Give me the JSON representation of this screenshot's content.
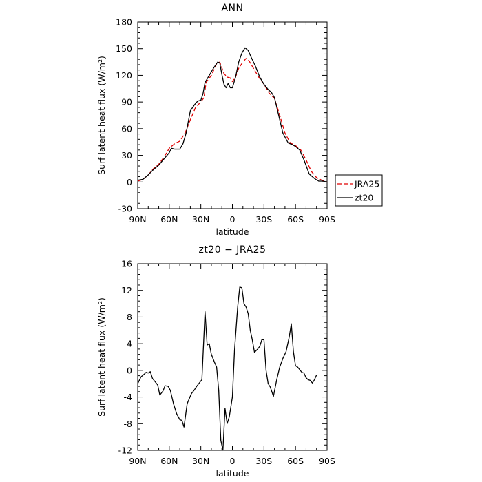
{
  "chart_data": [
    {
      "type": "line",
      "title": "ANN",
      "xlabel": "latitude",
      "ylabel": "Surf latent heat flux (W/m²)",
      "xlim": [
        90,
        -90
      ],
      "ylim": [
        -30,
        180
      ],
      "x_ticks": [
        90,
        60,
        30,
        0,
        -30,
        -60,
        -90
      ],
      "x_tick_labels": [
        "90N",
        "60N",
        "30N",
        "0",
        "30S",
        "60S",
        "90S"
      ],
      "y_ticks": [
        -30,
        0,
        30,
        60,
        90,
        120,
        150,
        180
      ],
      "y_tick_labels": [
        "-30",
        "0",
        "30",
        "60",
        "90",
        "120",
        "150",
        "180"
      ],
      "legend": {
        "placement": "right",
        "entries": [
          "JRA25",
          "zt20"
        ]
      },
      "series": [
        {
          "name": "JRA25",
          "color": "#e00000",
          "dash": "dashed",
          "points": [
            [
              90,
              1
            ],
            [
              85,
              3
            ],
            [
              80,
              8
            ],
            [
              75,
              15
            ],
            [
              70,
              20
            ],
            [
              65,
              28
            ],
            [
              60,
              38
            ],
            [
              55,
              43
            ],
            [
              50,
              46
            ],
            [
              45,
              55
            ],
            [
              40,
              70
            ],
            [
              35,
              84
            ],
            [
              30,
              90
            ],
            [
              27,
              95
            ],
            [
              25,
              112
            ],
            [
              20,
              120
            ],
            [
              15,
              133
            ],
            [
              12,
              135
            ],
            [
              8,
              122
            ],
            [
              5,
              118
            ],
            [
              2,
              117
            ],
            [
              0,
              113
            ],
            [
              -3,
              118
            ],
            [
              -6,
              128
            ],
            [
              -10,
              135
            ],
            [
              -13,
              139
            ],
            [
              -16,
              136
            ],
            [
              -20,
              128
            ],
            [
              -25,
              118
            ],
            [
              -30,
              110
            ],
            [
              -35,
              100
            ],
            [
              -40,
              94
            ],
            [
              -45,
              75
            ],
            [
              -50,
              55
            ],
            [
              -55,
              44
            ],
            [
              -60,
              41
            ],
            [
              -65,
              36
            ],
            [
              -70,
              25
            ],
            [
              -75,
              12
            ],
            [
              -80,
              5
            ],
            [
              -85,
              2
            ],
            [
              -90,
              0
            ]
          ]
        },
        {
          "name": "zt20",
          "color": "#000000",
          "dash": "solid",
          "points": [
            [
              90,
              2
            ],
            [
              85,
              3
            ],
            [
              80,
              8
            ],
            [
              75,
              14
            ],
            [
              70,
              19
            ],
            [
              65,
              26
            ],
            [
              60,
              33
            ],
            [
              58,
              38
            ],
            [
              55,
              37
            ],
            [
              50,
              37
            ],
            [
              47,
              43
            ],
            [
              44,
              55
            ],
            [
              40,
              80
            ],
            [
              36,
              87
            ],
            [
              33,
              91
            ],
            [
              30,
              92
            ],
            [
              28,
              99
            ],
            [
              26,
              112
            ],
            [
              22,
              120
            ],
            [
              18,
              128
            ],
            [
              14,
              135
            ],
            [
              12,
              134
            ],
            [
              10,
              121
            ],
            [
              8,
              110
            ],
            [
              6,
              106
            ],
            [
              4,
              111
            ],
            [
              2,
              106
            ],
            [
              0,
              106
            ],
            [
              -3,
              118
            ],
            [
              -6,
              135
            ],
            [
              -9,
              145
            ],
            [
              -12,
              151
            ],
            [
              -15,
              148
            ],
            [
              -18,
              140
            ],
            [
              -22,
              130
            ],
            [
              -26,
              118
            ],
            [
              -30,
              110
            ],
            [
              -34,
              104
            ],
            [
              -37,
              101
            ],
            [
              -40,
              95
            ],
            [
              -44,
              75
            ],
            [
              -48,
              55
            ],
            [
              -53,
              44
            ],
            [
              -57,
              42
            ],
            [
              -60,
              40
            ],
            [
              -64,
              36
            ],
            [
              -68,
              25
            ],
            [
              -73,
              9
            ],
            [
              -78,
              4
            ],
            [
              -82,
              1
            ],
            [
              -86,
              1
            ],
            [
              -90,
              0
            ]
          ]
        }
      ]
    },
    {
      "type": "line",
      "title": "zt20 − JRA25",
      "xlabel": "latitude",
      "ylabel": "Surf latent heat flux (W/m²)",
      "xlim": [
        90,
        -90
      ],
      "ylim": [
        -12,
        16
      ],
      "x_ticks": [
        90,
        60,
        30,
        0,
        -30,
        -60,
        -90
      ],
      "x_tick_labels": [
        "90N",
        "60N",
        "30N",
        "0",
        "30S",
        "60S",
        "90S"
      ],
      "y_ticks": [
        -12,
        -8,
        -4,
        0,
        4,
        8,
        12,
        16
      ],
      "y_tick_labels": [
        "-12",
        "-8",
        "-4",
        "0",
        "4",
        "8",
        "12",
        "16"
      ],
      "series": [
        {
          "color": "#000000",
          "dash": "solid",
          "points": [
            [
              90,
              -2
            ],
            [
              87,
              -1
            ],
            [
              84,
              -0.6
            ],
            [
              82,
              -0.3
            ],
            [
              80,
              -0.4
            ],
            [
              78,
              -0.2
            ],
            [
              76,
              -1.2
            ],
            [
              73,
              -1.8
            ],
            [
              71,
              -2.2
            ],
            [
              69,
              -3.7
            ],
            [
              66,
              -3.1
            ],
            [
              64,
              -2.3
            ],
            [
              61,
              -2.4
            ],
            [
              59,
              -3
            ],
            [
              56,
              -5
            ],
            [
              53,
              -6.5
            ],
            [
              50,
              -7.4
            ],
            [
              48,
              -7.5
            ],
            [
              46,
              -8.5
            ],
            [
              43,
              -5
            ],
            [
              39,
              -3.5
            ],
            [
              36,
              -2.9
            ],
            [
              34,
              -2.4
            ],
            [
              31,
              -1.8
            ],
            [
              29,
              -1.4
            ],
            [
              28,
              2
            ],
            [
              26,
              8.8
            ],
            [
              24,
              3.8
            ],
            [
              22,
              4
            ],
            [
              20,
              2.4
            ],
            [
              17,
              1.2
            ],
            [
              15,
              0.5
            ],
            [
              13,
              -3
            ],
            [
              11,
              -10.5
            ],
            [
              9,
              -12
            ],
            [
              7,
              -5.7
            ],
            [
              5,
              -8
            ],
            [
              3,
              -7
            ],
            [
              0,
              -4
            ],
            [
              -2,
              3
            ],
            [
              -5,
              9.5
            ],
            [
              -7,
              12.5
            ],
            [
              -9,
              12.4
            ],
            [
              -11,
              10
            ],
            [
              -13,
              9.5
            ],
            [
              -15,
              8.5
            ],
            [
              -17,
              6
            ],
            [
              -19,
              4.5
            ],
            [
              -21,
              2.7
            ],
            [
              -24,
              3.2
            ],
            [
              -26,
              3.6
            ],
            [
              -28,
              4.6
            ],
            [
              -30,
              4.6
            ],
            [
              -32,
              0
            ],
            [
              -34,
              -2
            ],
            [
              -36,
              -2.5
            ],
            [
              -39,
              -3.9
            ],
            [
              -42,
              -1.5
            ],
            [
              -45,
              0.5
            ],
            [
              -48,
              1.8
            ],
            [
              -51,
              2.8
            ],
            [
              -54,
              5
            ],
            [
              -56,
              7
            ],
            [
              -58,
              2.8
            ],
            [
              -60,
              0.7
            ],
            [
              -62,
              0.5
            ],
            [
              -64,
              0.1
            ],
            [
              -66,
              -0.3
            ],
            [
              -68,
              -0.4
            ],
            [
              -70,
              -1.1
            ],
            [
              -72,
              -1.4
            ],
            [
              -74,
              -1.5
            ],
            [
              -76,
              -1.9
            ],
            [
              -78,
              -1.4
            ],
            [
              -80,
              -0.7
            ]
          ]
        }
      ]
    }
  ]
}
